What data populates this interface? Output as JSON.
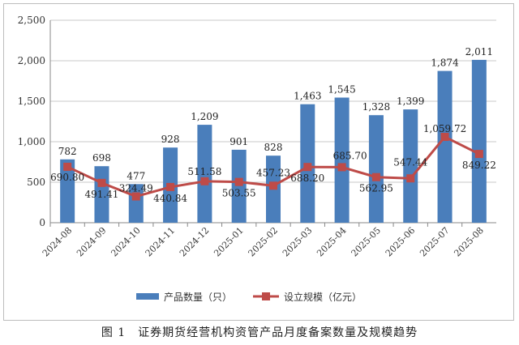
{
  "chart_data": {
    "type": "bar",
    "categories": [
      "2024-08",
      "2024-09",
      "2024-10",
      "2024-11",
      "2024-12",
      "2025-01",
      "2025-02",
      "2025-03",
      "2025-04",
      "2025-05",
      "2025-06",
      "2025-07",
      "2025-08"
    ],
    "series": [
      {
        "name": "产品数量（只）",
        "type": "bar",
        "color": "#4a7ebb",
        "values": [
          782,
          698,
          477,
          928,
          1209,
          901,
          828,
          1463,
          1545,
          1328,
          1399,
          1874,
          2011
        ],
        "labels": [
          "782",
          "698",
          "477",
          "928",
          "1,209",
          "901",
          "828",
          "1,463",
          "1,545",
          "1,328",
          "1,399",
          "1,874",
          "2,011"
        ]
      },
      {
        "name": "设立规模（亿元）",
        "type": "line",
        "color": "#be4b48",
        "values": [
          690.8,
          491.41,
          324.49,
          440.84,
          511.58,
          503.55,
          457.23,
          688.2,
          685.7,
          562.95,
          547.44,
          1059.72,
          849.22
        ],
        "labels": [
          "690.80",
          "491.41",
          "324.49",
          "440.84",
          "511.58",
          "503.55",
          "457.23",
          "688.20",
          "685.70",
          "562.95",
          "547.44",
          "1,059.72",
          "849.22"
        ]
      }
    ],
    "ylim": [
      0,
      2500
    ],
    "yticks": [
      "0",
      "500",
      "1,000",
      "1,500",
      "2,000",
      "2,500"
    ],
    "ytick_values": [
      0,
      500,
      1000,
      1500,
      2000,
      2500
    ],
    "grid": true,
    "legend": "bottom"
  },
  "caption": "图 1　证券期货经营机构资管产品月度备案数量及规模趋势"
}
